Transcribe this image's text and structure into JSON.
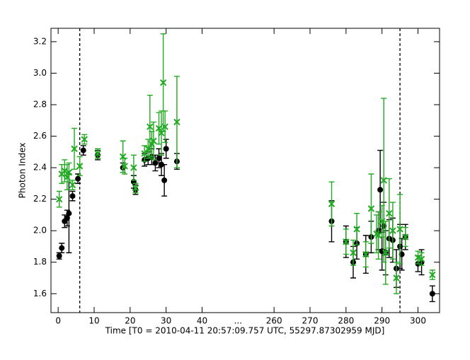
{
  "chart_data": {
    "type": "scatter",
    "xlabel": "Time [T0 = 2010-04-11 20:57:09.757 UTC, 55297.87302959 MJD]",
    "ylabel": "Photon Index",
    "xlim": [
      -2,
      306
    ],
    "x_break": [
      50,
      250
    ],
    "x_break_label": "...",
    "ylim": [
      1.48,
      3.285
    ],
    "xticks": [
      0,
      10,
      20,
      30,
      40,
      260,
      270,
      280,
      290,
      300
    ],
    "yticks": [
      1.6,
      1.8,
      {
        "value": 2,
        "label": "2.0"
      },
      2.2,
      2.4,
      2.6,
      2.8,
      {
        "value": 3,
        "label": "3.0"
      },
      3.2
    ],
    "vlines": [
      6,
      295
    ],
    "series": [
      {
        "color": "#000000",
        "marker": "circle",
        "x": [
          0.3,
          1,
          1.8,
          2.5,
          3,
          4,
          5.5,
          7,
          11,
          18,
          21,
          21.5,
          24,
          25,
          26,
          27,
          28,
          28.7,
          29.5,
          30,
          33,
          276,
          280,
          282,
          283,
          285.5,
          287,
          289,
          289.5,
          290,
          290.5,
          291,
          292,
          293,
          294,
          295,
          295.5,
          296.5,
          300,
          301,
          304
        ],
        "values": [
          1.84,
          1.89,
          2.06,
          2.08,
          2.11,
          2.22,
          2.33,
          2.51,
          2.48,
          2.4,
          2.31,
          2.26,
          2.45,
          2.46,
          2.47,
          2.43,
          2.46,
          2.42,
          2.32,
          2.52,
          2.44,
          2.06,
          1.93,
          1.8,
          1.92,
          1.85,
          1.96,
          2.0,
          2.26,
          1.87,
          2.03,
          1.86,
          1.95,
          1.94,
          1.76,
          1.9,
          1.85,
          1.96,
          1.79,
          1.8,
          1.6
        ],
        "errors": [
          0.02,
          0.03,
          0.04,
          0.05,
          0.25,
          0.03,
          0.03,
          0.03,
          0.03,
          0.03,
          0.04,
          0.03,
          0.04,
          0.04,
          0.05,
          0.05,
          0.06,
          0.07,
          0.1,
          0.06,
          0.05,
          0.13,
          0.1,
          0.1,
          0.1,
          0.12,
          0.1,
          0.12,
          0.25,
          0.12,
          0.15,
          0.14,
          0.12,
          0.14,
          0.12,
          0.14,
          0.1,
          0.08,
          0.05,
          0.08,
          0.05
        ]
      },
      {
        "color": "#22aa22",
        "marker": "x",
        "x": [
          0.3,
          1,
          1.8,
          2.5,
          3,
          4,
          4.5,
          6,
          7.3,
          11,
          18,
          18.5,
          21,
          21.5,
          24,
          25,
          25.5,
          26,
          26.5,
          28,
          28.7,
          29.2,
          29.7,
          33,
          276,
          280,
          282,
          283,
          285.5,
          287,
          288.5,
          289,
          290,
          290.5,
          291,
          292,
          293,
          294,
          295,
          296.5,
          300,
          301,
          304
        ],
        "values": [
          2.2,
          2.36,
          2.38,
          2.34,
          2.37,
          2.29,
          2.52,
          2.41,
          2.58,
          2.49,
          2.47,
          2.41,
          2.4,
          2.27,
          2.49,
          2.52,
          2.66,
          2.55,
          2.57,
          2.65,
          2.62,
          2.94,
          2.66,
          2.69,
          2.17,
          1.93,
          1.86,
          2.01,
          1.85,
          2.14,
          1.98,
          1.97,
          2.06,
          2.32,
          1.86,
          2.11,
          2.0,
          1.7,
          2.01,
          1.96,
          1.83,
          1.82,
          1.72
        ],
        "errors": [
          0.05,
          0.06,
          0.07,
          0.08,
          0.06,
          0.03,
          0.13,
          0.06,
          0.03,
          0.03,
          0.1,
          0.05,
          0.08,
          0.03,
          0.05,
          0.06,
          0.2,
          0.08,
          0.12,
          0.1,
          0.14,
          0.31,
          0.1,
          0.29,
          0.14,
          0.08,
          0.08,
          0.1,
          0.08,
          0.22,
          0.12,
          0.15,
          0.1,
          0.52,
          0.2,
          0.22,
          0.18,
          0.1,
          0.22,
          0.06,
          0.04,
          0.04,
          0.03
        ]
      }
    ]
  }
}
